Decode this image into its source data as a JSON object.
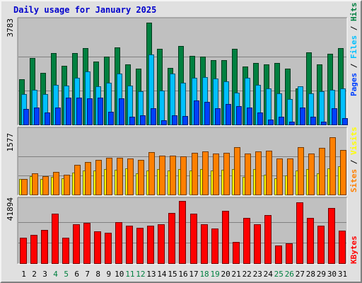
{
  "title": "Daily usage for January 2025",
  "colors": {
    "hits": "#008040",
    "files": "#00c0ff",
    "pages": "#0040ff",
    "visits": "#ffff00",
    "sites": "#ff8000",
    "kbytes": "#ff0000",
    "weekend_day": "#008040",
    "weekday": "#000000"
  },
  "weekend_days": [
    4,
    5,
    11,
    12,
    18,
    19,
    25,
    26
  ],
  "chart_data": [
    {
      "type": "bar",
      "name": "hits-files-pages",
      "max_label": "3783",
      "ylim": [
        0,
        3783
      ],
      "side_labels": [
        "Pages",
        "Files",
        "Hits"
      ],
      "categories": [
        1,
        2,
        3,
        4,
        5,
        6,
        7,
        8,
        9,
        10,
        11,
        12,
        13,
        14,
        15,
        16,
        17,
        18,
        19,
        20,
        21,
        22,
        23,
        24,
        25,
        26,
        27,
        28,
        29,
        30,
        31
      ],
      "series": [
        {
          "name": "Hits",
          "values": [
            1680,
            2470,
            1930,
            2650,
            2180,
            2630,
            2820,
            2340,
            2510,
            2850,
            2230,
            2060,
            3760,
            2800,
            2100,
            2890,
            2550,
            2520,
            2380,
            2380,
            2790,
            2150,
            2270,
            2240,
            2280,
            2070,
            1360,
            2680,
            2240,
            2620,
            2820
          ]
        },
        {
          "name": "Files",
          "values": [
            1130,
            1300,
            1130,
            1480,
            1450,
            1730,
            1960,
            1430,
            1560,
            1880,
            1460,
            1250,
            2590,
            1280,
            1900,
            1560,
            1730,
            1760,
            1720,
            1600,
            1200,
            1740,
            1480,
            1360,
            1160,
            970,
            1430,
            1170,
            1240,
            1300,
            1350
          ]
        },
        {
          "name": "Pages",
          "values": [
            600,
            660,
            470,
            640,
            1000,
            1000,
            990,
            1000,
            500,
            980,
            300,
            370,
            610,
            190,
            370,
            330,
            900,
            860,
            630,
            780,
            700,
            650,
            470,
            200,
            300,
            140,
            640,
            300,
            140,
            610,
            260
          ]
        }
      ]
    },
    {
      "type": "bar",
      "name": "visits-sites",
      "max_label": "1577",
      "ylim": [
        0,
        1577
      ],
      "side_labels": [
        "Sites",
        "Visits"
      ],
      "categories": [
        1,
        2,
        3,
        4,
        5,
        6,
        7,
        8,
        9,
        10,
        11,
        12,
        13,
        14,
        15,
        16,
        17,
        18,
        19,
        20,
        21,
        22,
        23,
        24,
        25,
        26,
        27,
        28,
        29,
        30,
        31
      ],
      "series": [
        {
          "name": "Visits",
          "values": [
            430,
            520,
            430,
            500,
            450,
            600,
            670,
            660,
            700,
            690,
            720,
            590,
            660,
            700,
            660,
            700,
            660,
            710,
            660,
            680,
            710,
            500,
            710,
            560,
            460,
            530,
            660,
            700,
            590,
            720,
            780
          ]
        },
        {
          "name": "Sites",
          "values": [
            430,
            590,
            520,
            620,
            560,
            820,
            900,
            950,
            1000,
            1010,
            980,
            950,
            1150,
            1060,
            1060,
            1040,
            1140,
            1170,
            1120,
            1140,
            1300,
            1120,
            1170,
            1200,
            980,
            980,
            1300,
            1120,
            1270,
            1560,
            1220
          ]
        }
      ]
    },
    {
      "type": "bar",
      "name": "kbytes",
      "max_label": "41894",
      "ylim": [
        0,
        41894
      ],
      "side_labels": [
        "KBytes"
      ],
      "categories": [
        1,
        2,
        3,
        4,
        5,
        6,
        7,
        8,
        9,
        10,
        11,
        12,
        13,
        14,
        15,
        16,
        17,
        18,
        19,
        20,
        21,
        22,
        23,
        24,
        25,
        26,
        27,
        28,
        29,
        30,
        31
      ],
      "series": [
        {
          "name": "KBytes",
          "values": [
            17500,
            19200,
            22800,
            33200,
            17500,
            26200,
            27500,
            21700,
            20500,
            27700,
            25200,
            23800,
            25500,
            26200,
            34000,
            41700,
            33200,
            26200,
            23700,
            35200,
            14400,
            30700,
            26200,
            32700,
            12200,
            13500,
            41000,
            30700,
            25200,
            37100,
            22200
          ]
        }
      ]
    }
  ]
}
